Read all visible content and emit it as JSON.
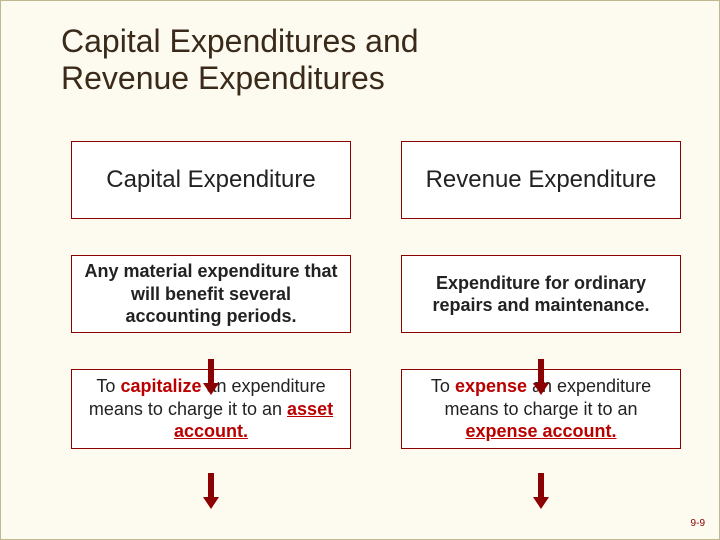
{
  "title": {
    "line1": "Capital Expenditures and",
    "line2": "Revenue Expenditures",
    "color": "#3a2a1a",
    "fontsize": 32
  },
  "border_color": "#8b0000",
  "arrow_color": "#8b0000",
  "background": "#fdfaf0",
  "columns": {
    "left": {
      "head": "Capital Expenditure",
      "def": "Any material expenditure that will benefit several accounting periods.",
      "action_pre": "To ",
      "action_hl1": "capitalize",
      "action_mid": " an expenditure means to charge it to an ",
      "action_hl2": "asset account.",
      "hl_color": "#bb0000"
    },
    "right": {
      "head": "Revenue Expenditure",
      "def": "Expenditure for ordinary repairs and maintenance.",
      "action_pre": "To ",
      "action_hl1": "expense",
      "action_mid": " an expenditure means to charge it to an ",
      "action_hl2": "expense account.",
      "hl_color": "#bb0000"
    }
  },
  "slidenum": "9-9"
}
